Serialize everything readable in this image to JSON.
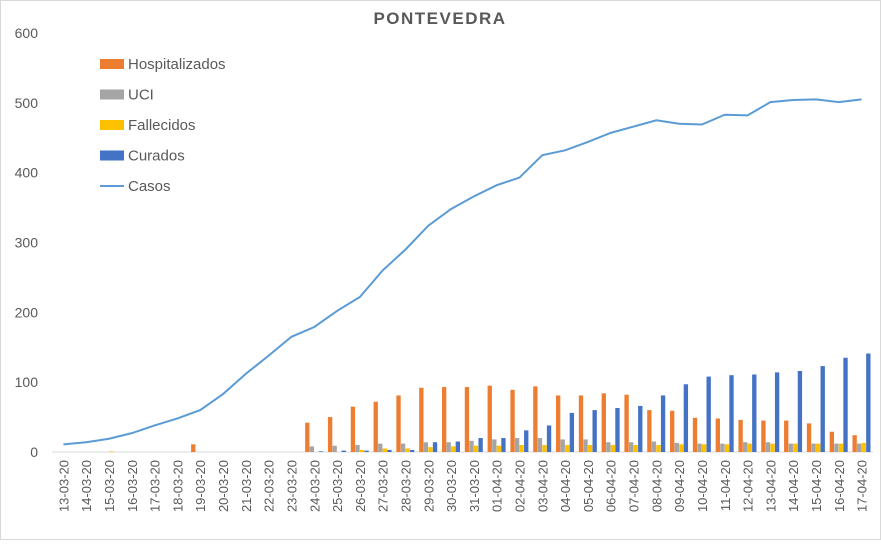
{
  "chart_data": {
    "type": "bar",
    "title": "PONTEVEDRA",
    "categories": [
      "13-03-20",
      "14-03-20",
      "15-03-20",
      "16-03-20",
      "17-03-20",
      "18-03-20",
      "19-03-20",
      "20-03-20",
      "21-03-20",
      "22-03-20",
      "23-03-20",
      "24-03-20",
      "25-03-20",
      "26-03-20",
      "27-03-20",
      "28-03-20",
      "29-03-20",
      "30-03-20",
      "31-03-20",
      "01-04-20",
      "02-04-20",
      "03-04-20",
      "04-04-20",
      "05-04-20",
      "06-04-20",
      "07-04-20",
      "08-04-20",
      "09-04-20",
      "10-04-20",
      "11-04-20",
      "12-04-20",
      "13-04-20",
      "14-04-20",
      "15-04-20",
      "16-04-20",
      "17-04-20"
    ],
    "series": [
      {
        "name": "Hospitalizados",
        "color": "#ed7d31",
        "type": "bar",
        "values": [
          0,
          0,
          0,
          0,
          0,
          0,
          11,
          0,
          0,
          0,
          0,
          42,
          50,
          65,
          72,
          81,
          92,
          93,
          93,
          95,
          89,
          94,
          81,
          81,
          84,
          82,
          60,
          59,
          49,
          48,
          46,
          45,
          45,
          41,
          29,
          24
        ]
      },
      {
        "name": "UCI",
        "color": "#a5a5a5",
        "type": "bar",
        "values": [
          0,
          0,
          0,
          0,
          0,
          0,
          0,
          0,
          0,
          0,
          0,
          8,
          9,
          10,
          12,
          12,
          14,
          14,
          16,
          18,
          20,
          20,
          18,
          18,
          14,
          14,
          15,
          13,
          12,
          12,
          14,
          14,
          12,
          12,
          12,
          12
        ]
      },
      {
        "name": "Fallecidos",
        "color": "#ffc000",
        "type": "bar",
        "values": [
          0,
          0,
          1,
          0,
          0,
          0,
          0,
          0,
          0,
          0,
          0,
          0,
          0,
          3,
          5,
          5,
          7,
          8,
          9,
          9,
          10,
          10,
          10,
          10,
          10,
          10,
          10,
          11,
          11,
          11,
          12,
          12,
          12,
          12,
          12,
          13
        ]
      },
      {
        "name": "Curados",
        "color": "#4472c4",
        "type": "bar",
        "values": [
          0,
          0,
          0,
          0,
          0,
          0,
          0,
          0,
          0,
          0,
          0,
          1,
          2,
          2,
          3,
          3,
          14,
          15,
          20,
          20,
          31,
          38,
          56,
          60,
          63,
          66,
          81,
          97,
          108,
          110,
          111,
          114,
          116,
          123,
          135,
          141
        ]
      },
      {
        "name": "Casos",
        "color": "#5b9bd5",
        "type": "line",
        "values": [
          11,
          14,
          19,
          27,
          38,
          48,
          60,
          83,
          112,
          138,
          165,
          179,
          202,
          222,
          260,
          290,
          324,
          348,
          366,
          382,
          393,
          425,
          432,
          444,
          457,
          466,
          475,
          470,
          469,
          483,
          482,
          501,
          504,
          505,
          501,
          505
        ]
      }
    ],
    "ylim": [
      0,
      600
    ],
    "yticks": [
      0,
      100,
      200,
      300,
      400,
      500,
      600
    ],
    "grid": false,
    "legend": "top-left"
  }
}
